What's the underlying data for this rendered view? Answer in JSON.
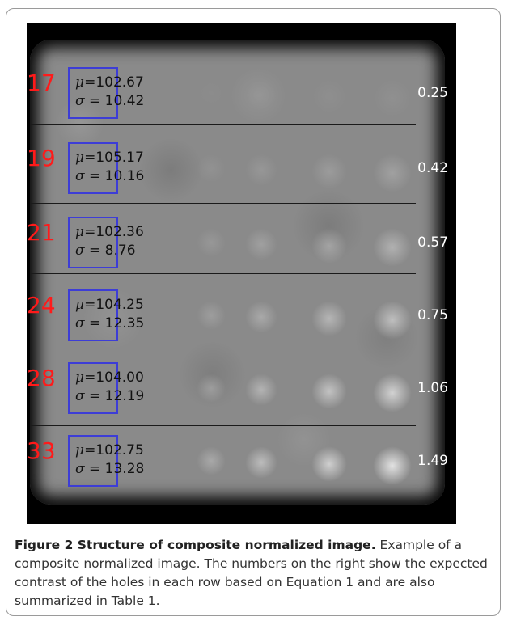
{
  "figure": {
    "rows": [
      {
        "label": "17",
        "mu": "102.67",
        "sigma": "10.42",
        "contrast": "0.25"
      },
      {
        "label": "19",
        "mu": "105.17",
        "sigma": "10.16",
        "contrast": "0.42"
      },
      {
        "label": "21",
        "mu": "102.36",
        "sigma": "8.76",
        "contrast": "0.57"
      },
      {
        "label": "24",
        "mu": "104.25",
        "sigma": "12.35",
        "contrast": "0.75"
      },
      {
        "label": "28",
        "mu": "104.00",
        "sigma": "12.19",
        "contrast": "1.06"
      },
      {
        "label": "33",
        "mu": "102.75",
        "sigma": "13.28",
        "contrast": "1.49"
      }
    ],
    "mu_symbol": "μ",
    "sigma_symbol": "σ",
    "eq": "=",
    "colors": {
      "row_label": "#ff1a1a",
      "roi_box": "#3d3dd6",
      "background": "#000000"
    }
  },
  "caption": {
    "title": "Figure 2 Structure of composite normalized image.",
    "text": " Example of a composite normalized image. The numbers on the right show the expected contrast of the holes in each row based on Equation 1 and are also summarized in Table 1."
  }
}
